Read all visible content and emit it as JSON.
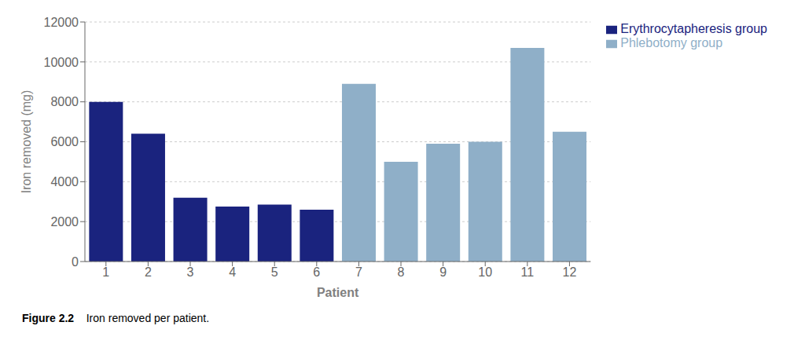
{
  "chart_data": {
    "type": "bar",
    "categories": [
      "1",
      "2",
      "3",
      "4",
      "5",
      "6",
      "7",
      "8",
      "9",
      "10",
      "11",
      "12"
    ],
    "series": [
      {
        "name": "Phlebotomy group",
        "color": "#8fafc8",
        "values": [
          null,
          null,
          null,
          null,
          null,
          null,
          8900,
          5000,
          5900,
          6000,
          10700,
          6500
        ]
      },
      {
        "name": "Erythrocytapheresis group",
        "color": "#1a237e",
        "values": [
          8000,
          6400,
          3200,
          2750,
          2850,
          2600,
          null,
          null,
          null,
          null,
          null,
          null
        ]
      }
    ],
    "xlabel": "Patient",
    "ylabel": "Iron removed (mg)",
    "ylim": [
      0,
      12000
    ],
    "yticks": [
      0,
      2000,
      4000,
      6000,
      8000,
      10000,
      12000
    ],
    "grid": true,
    "legend": "right",
    "stacked": true,
    "annotations": [
      "Figure 2.2",
      "    Iron removed per patient."
    ]
  }
}
